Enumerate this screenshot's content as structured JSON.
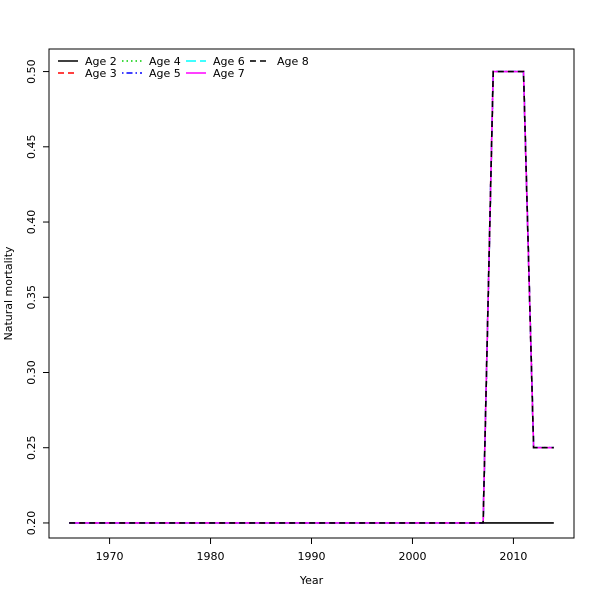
{
  "chart_data": {
    "type": "line",
    "title": "",
    "xlabel": "Year",
    "ylabel": "Natural mortality",
    "xlim": [
      1964,
      2016
    ],
    "ylim": [
      0.19,
      0.515
    ],
    "x_ticks": [
      1970,
      1980,
      1990,
      2000,
      2010
    ],
    "y_ticks": [
      0.2,
      0.25,
      0.3,
      0.35,
      0.4,
      0.45,
      0.5
    ],
    "y_tick_labels": [
      "0.20",
      "0.25",
      "0.30",
      "0.35",
      "0.40",
      "0.45",
      "0.50"
    ],
    "grid": false,
    "legend_position": "top-left",
    "series": [
      {
        "name": "Age 2",
        "color": "#000000",
        "dash": "solid",
        "x": [
          1966,
          2014
        ],
        "y": [
          0.2,
          0.2
        ]
      },
      {
        "name": "Age 3",
        "color": "#ff0000",
        "dash": "dashed",
        "x": [
          1966,
          2007,
          2008,
          2011,
          2012,
          2014
        ],
        "y": [
          0.2,
          0.2,
          0.5,
          0.5,
          0.25,
          0.25
        ]
      },
      {
        "name": "Age 4",
        "color": "#00cd00",
        "dash": "dotted",
        "x": [
          1966,
          2007,
          2008,
          2011,
          2012,
          2014
        ],
        "y": [
          0.2,
          0.2,
          0.5,
          0.5,
          0.25,
          0.25
        ]
      },
      {
        "name": "Age 5",
        "color": "#0000ff",
        "dash": "dotdash",
        "x": [
          1966,
          2007,
          2008,
          2011,
          2012,
          2014
        ],
        "y": [
          0.2,
          0.2,
          0.5,
          0.5,
          0.25,
          0.25
        ]
      },
      {
        "name": "Age 6",
        "color": "#00ffff",
        "dash": "longdash",
        "x": [
          1966,
          2007,
          2008,
          2011,
          2012,
          2014
        ],
        "y": [
          0.2,
          0.2,
          0.5,
          0.5,
          0.25,
          0.25
        ]
      },
      {
        "name": "Age 7",
        "color": "#ff00ff",
        "dash": "solid",
        "x": [
          1966,
          2007,
          2008,
          2011,
          2012,
          2014
        ],
        "y": [
          0.2,
          0.2,
          0.5,
          0.5,
          0.25,
          0.25
        ]
      },
      {
        "name": "Age 8",
        "color": "#000000",
        "dash": "dashed",
        "x": [
          1966,
          2007,
          2008,
          2011,
          2012,
          2014
        ],
        "y": [
          0.2,
          0.2,
          0.5,
          0.5,
          0.25,
          0.25
        ]
      }
    ]
  }
}
